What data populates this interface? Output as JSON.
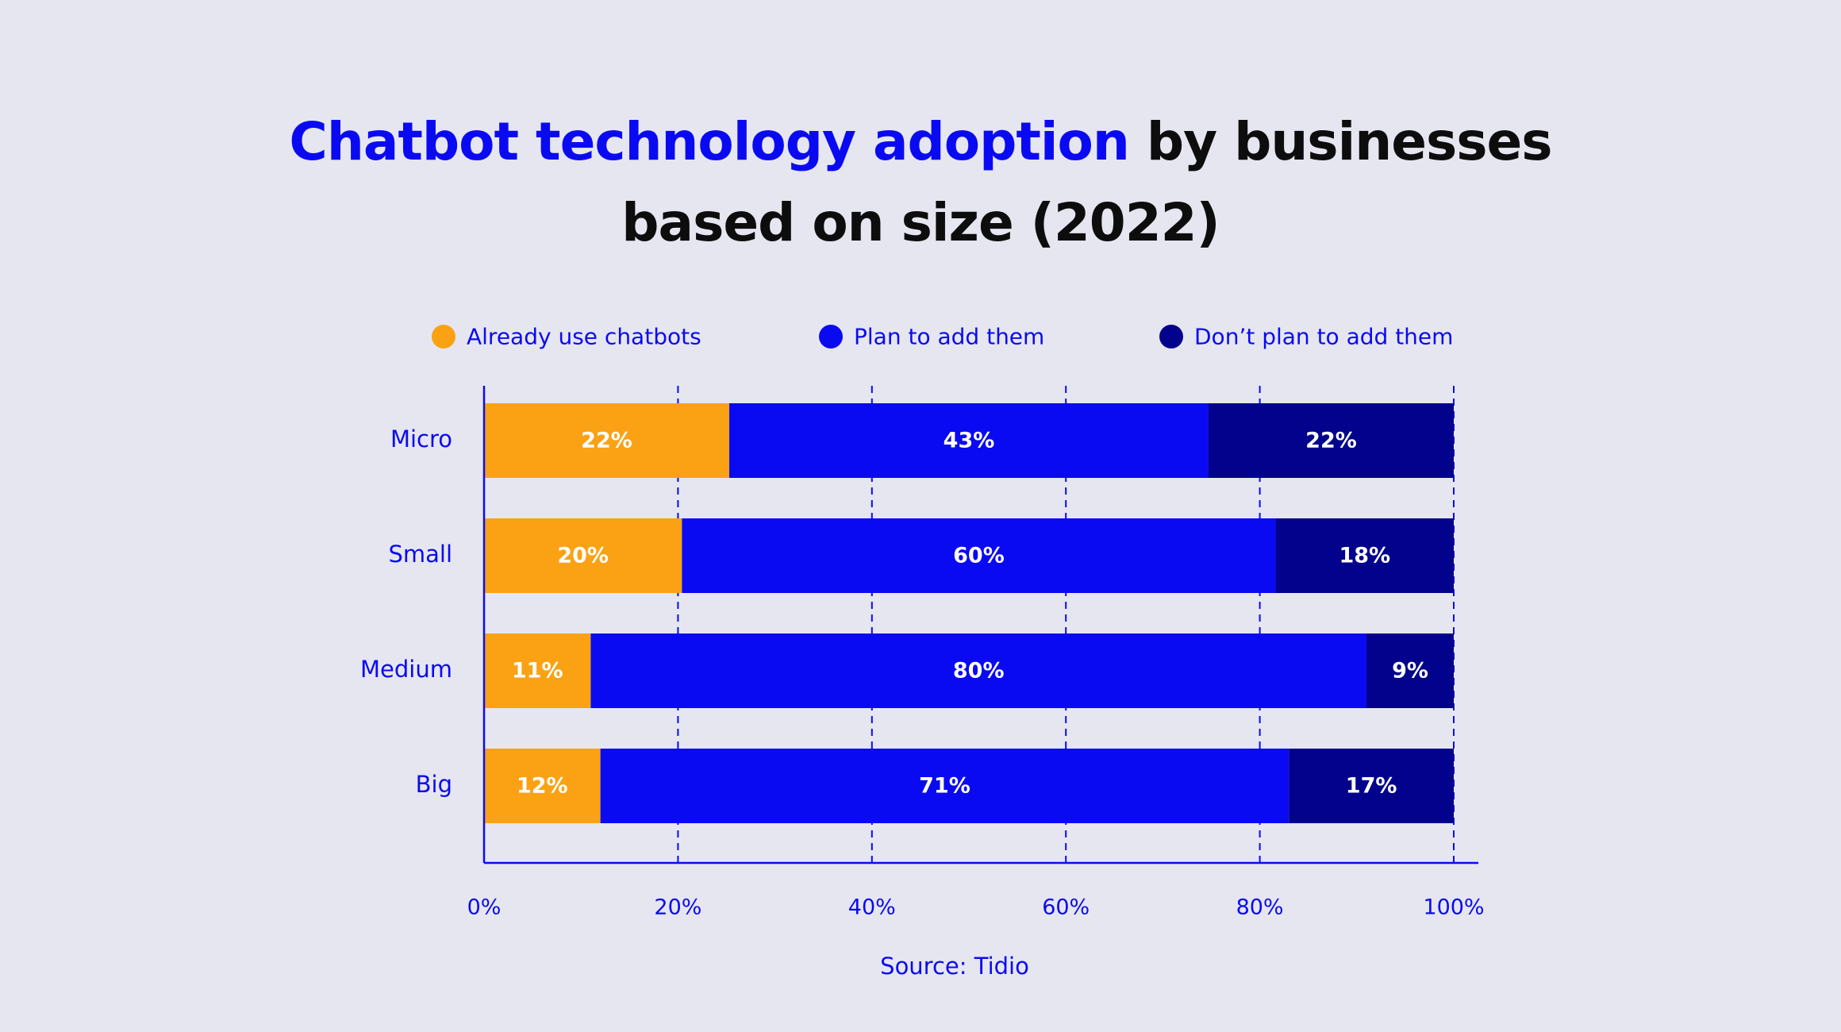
{
  "colors": {
    "background": "#e6e6f1",
    "already_use": "#faa214",
    "plan_to_add": "#0a0af2",
    "dont_plan": "#02028c",
    "text_blue": "#0a0af2",
    "title_dark": "#0d0d0d",
    "bar_label": "#ffffff"
  },
  "title": {
    "accent": "Chatbot technology adoption",
    "rest_line1": " by businesses",
    "line2": "based on size (2022)"
  },
  "chart_data": {
    "type": "bar",
    "orientation": "horizontal",
    "stacked": true,
    "categories": [
      "Micro",
      "Small",
      "Medium",
      "Big"
    ],
    "series": [
      {
        "name": "Already use chatbots",
        "color_key": "already_use",
        "values": [
          22,
          20,
          11,
          12
        ]
      },
      {
        "name": "Plan to add them",
        "color_key": "plan_to_add",
        "values": [
          43,
          60,
          80,
          71
        ]
      },
      {
        "name": "Don’t plan to add them",
        "color_key": "dont_plan",
        "values": [
          22,
          18,
          9,
          17
        ]
      }
    ],
    "xlim": [
      0,
      100
    ],
    "xticks": [
      0,
      20,
      40,
      60,
      80,
      100
    ],
    "xtick_labels": [
      "0%",
      "20%",
      "40%",
      "60%",
      "80%",
      "100%"
    ],
    "grid": "vertical dashed",
    "legend": "top-center",
    "source": "Source: Tidio"
  }
}
